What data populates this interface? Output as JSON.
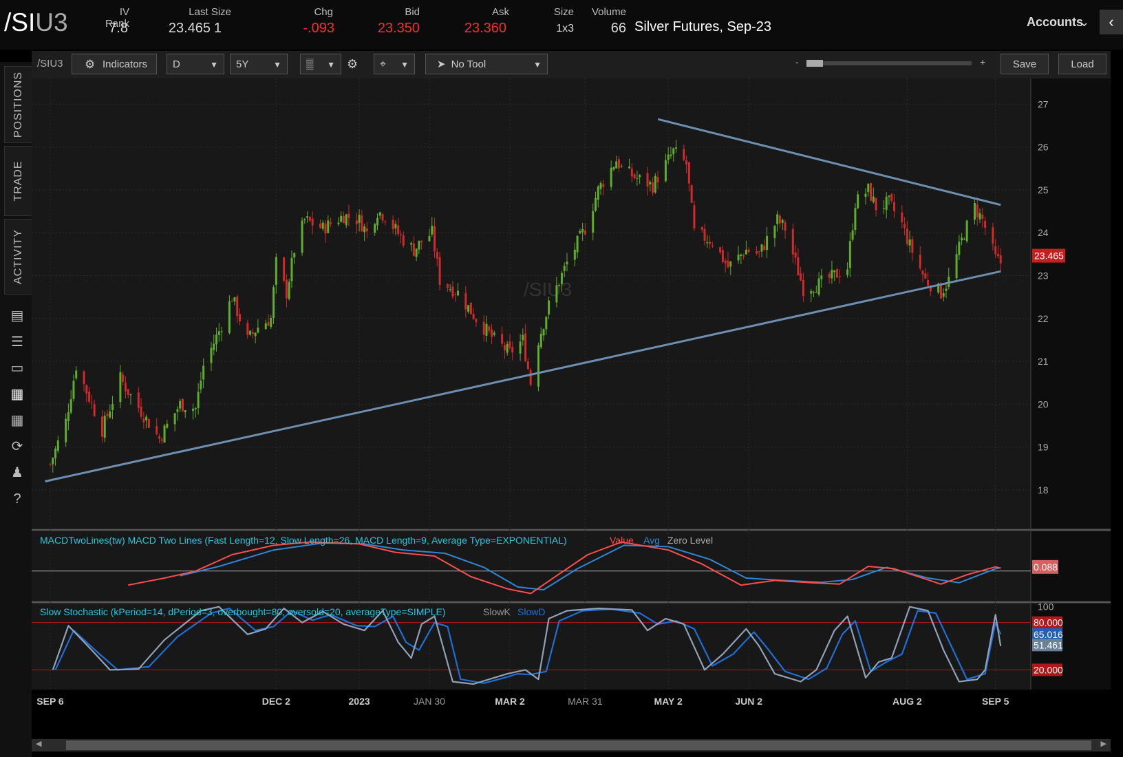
{
  "header": {
    "symbol_main": "/SI",
    "symbol_suffix": "U3",
    "iv_rank_label": "IV Rank",
    "iv_rank": "7.8",
    "last_size_label": "Last Size",
    "last": "23.465",
    "last_size": "1",
    "chg_label": "Chg",
    "chg": "-.093",
    "bid_label": "Bid",
    "bid": "23.350",
    "ask_label": "Ask",
    "ask": "23.360",
    "size_label": "Size",
    "size": "1x3",
    "volume_label": "Volume",
    "volume": "66",
    "description": "Silver Futures, Sep-23",
    "accounts_label": "Accounts"
  },
  "sidebar": {
    "tabs": [
      "POSITIONS",
      "TRADE",
      "ACTIVITY"
    ],
    "icons": [
      "monitor-icon",
      "list-icon",
      "tv-icon",
      "chart-icon",
      "grid-icon",
      "analyze-icon",
      "community-icon",
      "help-icon"
    ]
  },
  "toolbar": {
    "symbol": "/SIU3",
    "indicators": "Indicators",
    "aggregation": "D",
    "timeframe": "5Y",
    "drawing_tool": "No Tool",
    "zoom_minus": "-",
    "zoom_plus": "+",
    "save": "Save",
    "load": "Load"
  },
  "colors": {
    "up": "#5fae2a",
    "down": "#d02a2a",
    "trendline": "#6d8fb0",
    "macd_value": "#ff4d4d",
    "macd_avg": "#2f86d6",
    "slowk": "#8fa3b8",
    "slowd": "#1f6fd6",
    "study_label": "#22c8e0"
  },
  "chart_data": {
    "type": "candlestick",
    "watermark": "/SIU3",
    "price_axis": {
      "ticks": [
        27,
        26,
        25,
        24,
        23,
        22,
        21,
        20,
        19,
        18
      ],
      "range": [
        17.1,
        27.6
      ]
    },
    "last_price_tag": "23.465",
    "x_labels": [
      "SEP 6",
      "DEC 2",
      "2023",
      "JAN 30",
      "MAR 2",
      "MAR 31",
      "MAY 2",
      "JUN 2",
      "AUG 2",
      "SEP 5"
    ],
    "x_label_bold": [
      true,
      true,
      true,
      false,
      true,
      false,
      true,
      true,
      true,
      true
    ],
    "trendlines": [
      {
        "name": "support",
        "from": [
          "2022-09-04",
          18.2
        ],
        "to": [
          "2023-09-07",
          23.1
        ]
      },
      {
        "name": "resistance",
        "from": [
          "2023-04-28",
          26.65
        ],
        "to": [
          "2023-09-07",
          24.65
        ]
      }
    ],
    "waypoints": [
      [
        "2022-09-06",
        18.6
      ],
      [
        "2022-09-12",
        19.6
      ],
      [
        "2022-09-16",
        20.9
      ],
      [
        "2022-09-26",
        19.4
      ],
      [
        "2022-10-03",
        20.6
      ],
      [
        "2022-10-07",
        20.2
      ],
      [
        "2022-10-18",
        19.2
      ],
      [
        "2022-10-26",
        20.0
      ],
      [
        "2022-11-01",
        19.9
      ],
      [
        "2022-11-04",
        20.9
      ],
      [
        "2022-11-10",
        21.7
      ],
      [
        "2022-11-15",
        22.5
      ],
      [
        "2022-11-21",
        21.5
      ],
      [
        "2022-11-25",
        21.8
      ],
      [
        "2022-11-30",
        22.0
      ],
      [
        "2022-12-02",
        23.3
      ],
      [
        "2022-12-06",
        22.6
      ],
      [
        "2022-12-09",
        23.6
      ],
      [
        "2022-12-13",
        24.3
      ],
      [
        "2022-12-20",
        24.1
      ],
      [
        "2022-12-28",
        24.4
      ],
      [
        "2023-01-03",
        24.3
      ],
      [
        "2023-01-06",
        24.0
      ],
      [
        "2023-01-10",
        24.5
      ],
      [
        "2023-01-13",
        24.4
      ],
      [
        "2023-01-19",
        23.9
      ],
      [
        "2023-01-24",
        23.6
      ],
      [
        "2023-01-27",
        23.8
      ],
      [
        "2023-01-31",
        24.0
      ],
      [
        "2023-02-03",
        22.9
      ],
      [
        "2023-02-10",
        22.6
      ],
      [
        "2023-02-17",
        22.0
      ],
      [
        "2023-02-24",
        21.5
      ],
      [
        "2023-03-02",
        21.2
      ],
      [
        "2023-03-07",
        21.5
      ],
      [
        "2023-03-10",
        20.5
      ],
      [
        "2023-03-13",
        21.5
      ],
      [
        "2023-03-17",
        22.3
      ],
      [
        "2023-03-24",
        23.3
      ],
      [
        "2023-03-31",
        24.1
      ],
      [
        "2023-04-05",
        25.0
      ],
      [
        "2023-04-12",
        25.7
      ],
      [
        "2023-04-14",
        25.5
      ],
      [
        "2023-04-19",
        25.3
      ],
      [
        "2023-04-26",
        25.1
      ],
      [
        "2023-04-28",
        25.3
      ],
      [
        "2023-05-04",
        25.9
      ],
      [
        "2023-05-09",
        25.6
      ],
      [
        "2023-05-12",
        24.0
      ],
      [
        "2023-05-19",
        23.8
      ],
      [
        "2023-05-25",
        23.2
      ],
      [
        "2023-06-01",
        23.6
      ],
      [
        "2023-06-06",
        23.5
      ],
      [
        "2023-06-13",
        24.3
      ],
      [
        "2023-06-16",
        24.1
      ],
      [
        "2023-06-23",
        22.7
      ],
      [
        "2023-06-29",
        22.8
      ],
      [
        "2023-07-05",
        23.0
      ],
      [
        "2023-07-10",
        23.2
      ],
      [
        "2023-07-13",
        24.7
      ],
      [
        "2023-07-18",
        25.0
      ],
      [
        "2023-07-21",
        24.6
      ],
      [
        "2023-07-26",
        24.7
      ],
      [
        "2023-07-31",
        24.2
      ],
      [
        "2023-08-03",
        23.7
      ],
      [
        "2023-08-09",
        22.9
      ],
      [
        "2023-08-15",
        22.6
      ],
      [
        "2023-08-18",
        22.9
      ],
      [
        "2023-08-24",
        24.0
      ],
      [
        "2023-08-28",
        24.6
      ],
      [
        "2023-08-31",
        24.3
      ],
      [
        "2023-09-05",
        23.4
      ],
      [
        "2023-09-07",
        23.3
      ]
    ],
    "macd": {
      "label": "MACDTwoLines(tw) MACD Two Lines (Fast Length=12, Slow Length=26, MACD Length=9, Average Type=EXPONENTIAL)",
      "legend": [
        "Value",
        "Avg",
        "Zero Level"
      ],
      "readout": "0.088",
      "range": [
        -0.65,
        0.85
      ],
      "value_waypoints": [
        [
          "2022-10-06",
          -0.3
        ],
        [
          "2022-10-20",
          -0.15
        ],
        [
          "2022-11-01",
          0.0
        ],
        [
          "2022-11-15",
          0.35
        ],
        [
          "2022-12-01",
          0.55
        ],
        [
          "2022-12-15",
          0.62
        ],
        [
          "2023-01-03",
          0.58
        ],
        [
          "2023-01-17",
          0.4
        ],
        [
          "2023-02-01",
          0.32
        ],
        [
          "2023-02-15",
          -0.12
        ],
        [
          "2023-03-01",
          -0.38
        ],
        [
          "2023-03-10",
          -0.48
        ],
        [
          "2023-03-20",
          -0.1
        ],
        [
          "2023-04-01",
          0.35
        ],
        [
          "2023-04-14",
          0.62
        ],
        [
          "2023-05-02",
          0.45
        ],
        [
          "2023-05-15",
          0.15
        ],
        [
          "2023-05-30",
          -0.3
        ],
        [
          "2023-06-12",
          -0.2
        ],
        [
          "2023-06-26",
          -0.25
        ],
        [
          "2023-07-07",
          -0.28
        ],
        [
          "2023-07-18",
          0.1
        ],
        [
          "2023-07-28",
          0.05
        ],
        [
          "2023-08-15",
          -0.28
        ],
        [
          "2023-08-25",
          -0.08
        ],
        [
          "2023-09-05",
          0.09
        ],
        [
          "2023-09-07",
          0.06
        ]
      ],
      "avg_waypoints": [
        [
          "2022-10-26",
          -0.1
        ],
        [
          "2022-11-10",
          0.1
        ],
        [
          "2022-12-01",
          0.45
        ],
        [
          "2022-12-20",
          0.6
        ],
        [
          "2023-01-05",
          0.58
        ],
        [
          "2023-01-20",
          0.45
        ],
        [
          "2023-02-05",
          0.38
        ],
        [
          "2023-02-20",
          0.08
        ],
        [
          "2023-03-05",
          -0.34
        ],
        [
          "2023-03-15",
          -0.4
        ],
        [
          "2023-03-28",
          0.05
        ],
        [
          "2023-04-15",
          0.55
        ],
        [
          "2023-05-02",
          0.52
        ],
        [
          "2023-05-18",
          0.25
        ],
        [
          "2023-06-01",
          -0.15
        ],
        [
          "2023-06-15",
          -0.2
        ],
        [
          "2023-06-30",
          -0.24
        ],
        [
          "2023-07-12",
          -0.18
        ],
        [
          "2023-07-25",
          0.08
        ],
        [
          "2023-08-10",
          -0.15
        ],
        [
          "2023-08-22",
          -0.25
        ],
        [
          "2023-09-05",
          0.05
        ],
        [
          "2023-09-07",
          0.07
        ]
      ]
    },
    "stochastic": {
      "label": "Slow Stochastic (kPeriod=14, dPeriod=3, overbought=80, oversold=20, averageType=SIMPLE)",
      "legend": [
        "SlowK",
        "SlowD"
      ],
      "ticks": [
        100
      ],
      "overbought": "80.000",
      "oversold": "20.000",
      "slowk_readout": "51.461",
      "slowd_readout": "65.016",
      "range": [
        -5,
        105
      ],
      "k_waypoints": [
        [
          "2022-09-07",
          20
        ],
        [
          "2022-09-13",
          76
        ],
        [
          "2022-09-22",
          45
        ],
        [
          "2022-09-29",
          20
        ],
        [
          "2022-10-10",
          21
        ],
        [
          "2022-10-20",
          58
        ],
        [
          "2022-11-03",
          95
        ],
        [
          "2022-11-10",
          100
        ],
        [
          "2022-11-21",
          65
        ],
        [
          "2022-11-28",
          72
        ],
        [
          "2022-12-05",
          98
        ],
        [
          "2022-12-12",
          80
        ],
        [
          "2022-12-20",
          94
        ],
        [
          "2022-12-28",
          78
        ],
        [
          "2023-01-05",
          70
        ],
        [
          "2023-01-12",
          95
        ],
        [
          "2023-01-18",
          55
        ],
        [
          "2023-01-23",
          35
        ],
        [
          "2023-01-27",
          78
        ],
        [
          "2023-02-01",
          88
        ],
        [
          "2023-02-08",
          5
        ],
        [
          "2023-02-16",
          2
        ],
        [
          "2023-02-24",
          10
        ],
        [
          "2023-03-01",
          15
        ],
        [
          "2023-03-08",
          20
        ],
        [
          "2023-03-13",
          8
        ],
        [
          "2023-03-17",
          85
        ],
        [
          "2023-03-24",
          95
        ],
        [
          "2023-04-05",
          98
        ],
        [
          "2023-04-18",
          96
        ],
        [
          "2023-04-24",
          70
        ],
        [
          "2023-05-01",
          85
        ],
        [
          "2023-05-08",
          78
        ],
        [
          "2023-05-16",
          20
        ],
        [
          "2023-05-23",
          40
        ],
        [
          "2023-06-01",
          72
        ],
        [
          "2023-06-06",
          50
        ],
        [
          "2023-06-12",
          15
        ],
        [
          "2023-06-22",
          5
        ],
        [
          "2023-06-28",
          20
        ],
        [
          "2023-07-05",
          70
        ],
        [
          "2023-07-10",
          88
        ],
        [
          "2023-07-17",
          10
        ],
        [
          "2023-07-22",
          30
        ],
        [
          "2023-07-27",
          35
        ],
        [
          "2023-08-03",
          100
        ],
        [
          "2023-08-10",
          95
        ],
        [
          "2023-08-16",
          45
        ],
        [
          "2023-08-22",
          5
        ],
        [
          "2023-08-29",
          8
        ],
        [
          "2023-09-01",
          20
        ],
        [
          "2023-09-05",
          90
        ],
        [
          "2023-09-07",
          50
        ]
      ],
      "d_waypoints": [
        [
          "2022-09-08",
          20
        ],
        [
          "2022-09-15",
          70
        ],
        [
          "2022-09-25",
          40
        ],
        [
          "2022-10-02",
          20
        ],
        [
          "2022-10-14",
          24
        ],
        [
          "2022-10-25",
          62
        ],
        [
          "2022-11-07",
          92
        ],
        [
          "2022-11-14",
          98
        ],
        [
          "2022-11-24",
          70
        ],
        [
          "2022-12-01",
          75
        ],
        [
          "2022-12-08",
          95
        ],
        [
          "2022-12-16",
          83
        ],
        [
          "2022-12-23",
          90
        ],
        [
          "2023-01-02",
          76
        ],
        [
          "2023-01-09",
          75
        ],
        [
          "2023-01-16",
          88
        ],
        [
          "2023-01-21",
          55
        ],
        [
          "2023-01-26",
          45
        ],
        [
          "2023-02-01",
          80
        ],
        [
          "2023-02-06",
          75
        ],
        [
          "2023-02-11",
          8
        ],
        [
          "2023-02-20",
          3
        ],
        [
          "2023-02-28",
          10
        ],
        [
          "2023-03-05",
          15
        ],
        [
          "2023-03-10",
          14
        ],
        [
          "2023-03-16",
          18
        ],
        [
          "2023-03-21",
          82
        ],
        [
          "2023-03-30",
          95
        ],
        [
          "2023-04-10",
          97
        ],
        [
          "2023-04-21",
          92
        ],
        [
          "2023-04-28",
          78
        ],
        [
          "2023-05-05",
          82
        ],
        [
          "2023-05-12",
          72
        ],
        [
          "2023-05-19",
          25
        ],
        [
          "2023-05-27",
          40
        ],
        [
          "2023-06-04",
          68
        ],
        [
          "2023-06-09",
          48
        ],
        [
          "2023-06-16",
          18
        ],
        [
          "2023-06-25",
          8
        ],
        [
          "2023-07-02",
          22
        ],
        [
          "2023-07-08",
          65
        ],
        [
          "2023-07-13",
          82
        ],
        [
          "2023-07-19",
          18
        ],
        [
          "2023-07-25",
          30
        ],
        [
          "2023-07-31",
          40
        ],
        [
          "2023-08-06",
          95
        ],
        [
          "2023-08-13",
          92
        ],
        [
          "2023-08-19",
          50
        ],
        [
          "2023-08-25",
          8
        ],
        [
          "2023-09-01",
          15
        ],
        [
          "2023-09-05",
          80
        ],
        [
          "2023-09-07",
          65
        ]
      ]
    }
  }
}
